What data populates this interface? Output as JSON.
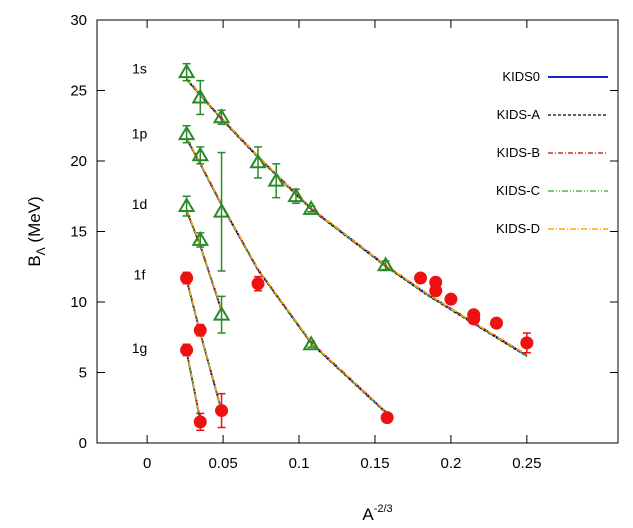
{
  "chart_data": {
    "type": "line",
    "xlabel": "A",
    "xlabel_sup": "-2/3",
    "ylabel": "B",
    "ylabel_sub": "Λ",
    "ylabel_unit": " (MeV)",
    "xlim": [
      -0.033,
      0.31
    ],
    "ylim": [
      0,
      30
    ],
    "x_ticks": [
      0,
      0.05,
      0.1,
      0.15,
      0.2,
      0.25
    ],
    "x_tick_labels": [
      "0",
      "0.05",
      "0.1",
      "0.15",
      "0.2",
      "0.25"
    ],
    "y_ticks": [
      0,
      5,
      10,
      15,
      20,
      25,
      30
    ],
    "y_tick_labels": [
      "0",
      "5",
      "10",
      "15",
      "20",
      "25",
      "30"
    ],
    "grid": false,
    "legend_position": "top-right",
    "shell_labels": [
      {
        "text": "1s",
        "x": -0.005,
        "y": 26.2
      },
      {
        "text": "1p",
        "x": -0.005,
        "y": 21.6
      },
      {
        "text": "1d",
        "x": -0.005,
        "y": 16.6
      },
      {
        "text": "1f",
        "x": -0.005,
        "y": 11.6
      },
      {
        "text": "1g",
        "x": -0.005,
        "y": 6.4
      }
    ],
    "series": [
      {
        "name": "KIDS0",
        "color": "#0000cc",
        "dash": "",
        "width": 1.8
      },
      {
        "name": "KIDS-A",
        "color": "#000000",
        "dash": "3,2",
        "width": 1.2
      },
      {
        "name": "KIDS-B",
        "color": "#cc0000",
        "dash": "5,2,1,2",
        "width": 1.2
      },
      {
        "name": "KIDS-C",
        "color": "#22aa22",
        "dash": "6,2,1,2,1,2",
        "width": 1.2
      },
      {
        "name": "KIDS-D",
        "color": "#ffaa00",
        "dash": "6,2,1,2",
        "width": 1.4
      }
    ],
    "curves": [
      {
        "shell": "1s",
        "x": [
          0.026,
          0.035,
          0.049,
          0.073,
          0.108,
          0.158,
          0.185,
          0.215,
          0.25
        ],
        "y": [
          25.8,
          24.7,
          23.0,
          20.3,
          16.6,
          12.5,
          10.5,
          8.5,
          6.2
        ]
      },
      {
        "shell": "1p",
        "x": [
          0.026,
          0.035,
          0.049,
          0.073,
          0.108,
          0.158
        ],
        "y": [
          21.6,
          19.8,
          16.9,
          12.3,
          7.1,
          2.1
        ]
      },
      {
        "shell": "1d",
        "x": [
          0.026,
          0.035,
          0.049
        ],
        "y": [
          16.5,
          14.0,
          9.4
        ]
      },
      {
        "shell": "1f",
        "x": [
          0.026,
          0.035,
          0.049
        ],
        "y": [
          11.6,
          7.8,
          2.3
        ]
      },
      {
        "shell": "1g",
        "x": [
          0.026,
          0.035
        ],
        "y": [
          6.5,
          1.6
        ]
      }
    ],
    "triangles": [
      {
        "x": 0.026,
        "y": 26.3,
        "err": 0.6
      },
      {
        "x": 0.035,
        "y": 24.5,
        "err": 1.2
      },
      {
        "x": 0.049,
        "y": 23.1,
        "err": 0.5
      },
      {
        "x": 0.073,
        "y": 19.9,
        "err": 1.1
      },
      {
        "x": 0.085,
        "y": 18.6,
        "err": 1.2
      },
      {
        "x": 0.098,
        "y": 17.5,
        "err": 0.5
      },
      {
        "x": 0.108,
        "y": 16.6,
        "err": 0.2
      },
      {
        "x": 0.157,
        "y": 12.6,
        "err": 0.3
      },
      {
        "x": 0.026,
        "y": 21.9,
        "err": 0.6
      },
      {
        "x": 0.035,
        "y": 20.4,
        "err": 0.6
      },
      {
        "x": 0.049,
        "y": 16.4,
        "err": 4.2
      },
      {
        "x": 0.108,
        "y": 7.0,
        "err": 0.2
      },
      {
        "x": 0.026,
        "y": 16.8,
        "err": 0.7
      },
      {
        "x": 0.035,
        "y": 14.4,
        "err": 0.5
      },
      {
        "x": 0.049,
        "y": 9.1,
        "err": 1.3
      }
    ],
    "circles": [
      {
        "x": 0.026,
        "y": 11.7,
        "err": 0.4
      },
      {
        "x": 0.035,
        "y": 8.0,
        "err": 0.4
      },
      {
        "x": 0.049,
        "y": 2.3,
        "err": 1.2
      },
      {
        "x": 0.026,
        "y": 6.6,
        "err": 0.4
      },
      {
        "x": 0.035,
        "y": 1.5,
        "err": 0.6
      },
      {
        "x": 0.073,
        "y": 11.3,
        "err": 0.5
      },
      {
        "x": 0.158,
        "y": 1.8,
        "err": 0.2
      },
      {
        "x": 0.18,
        "y": 11.7,
        "err": 0.1
      },
      {
        "x": 0.19,
        "y": 11.4,
        "err": 0.1
      },
      {
        "x": 0.19,
        "y": 10.8,
        "err": 0.1
      },
      {
        "x": 0.2,
        "y": 10.2,
        "err": 0.1
      },
      {
        "x": 0.215,
        "y": 9.1,
        "err": 0.2
      },
      {
        "x": 0.215,
        "y": 8.8,
        "err": 0.2
      },
      {
        "x": 0.23,
        "y": 8.5,
        "err": 0.1
      },
      {
        "x": 0.25,
        "y": 7.1,
        "err": 0.7
      }
    ],
    "triangle_color": "#2a8a2a",
    "circle_color": "#ee1111"
  }
}
